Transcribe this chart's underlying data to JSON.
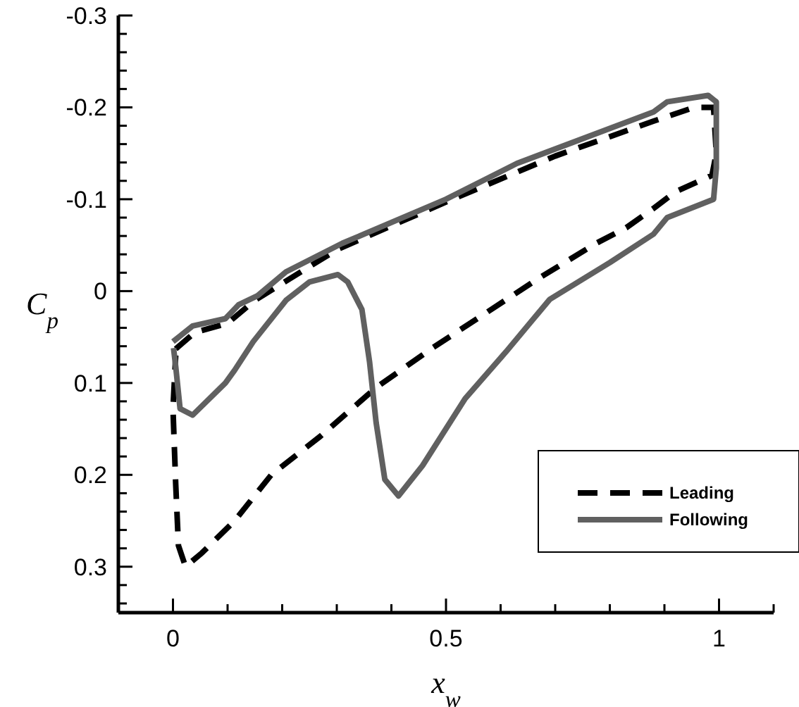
{
  "chart_data": {
    "type": "line",
    "xlabel": "x$_{w}$",
    "ylabel": "C$_{p}$",
    "xlim": [
      -0.1,
      1.1
    ],
    "ylim": [
      0.35,
      -0.3
    ],
    "xticks": [
      {
        "value": 0,
        "label": "0"
      },
      {
        "value": 0.1,
        "label": null
      },
      {
        "value": 0.2,
        "label": null
      },
      {
        "value": 0.3,
        "label": null
      },
      {
        "value": 0.4,
        "label": null
      },
      {
        "value": 0.5,
        "label": "0.5"
      },
      {
        "value": 0.6,
        "label": null
      },
      {
        "value": 0.7,
        "label": null
      },
      {
        "value": 0.8,
        "label": null
      },
      {
        "value": 0.9,
        "label": null
      },
      {
        "value": 1,
        "label": "1"
      },
      {
        "value": 1.1,
        "label": null
      }
    ],
    "yticks": [
      {
        "value": -0.3,
        "label": "-0.3"
      },
      {
        "value": -0.28,
        "label": null
      },
      {
        "value": -0.26,
        "label": null
      },
      {
        "value": -0.24,
        "label": null
      },
      {
        "value": -0.22,
        "label": null
      },
      {
        "value": -0.2,
        "label": "-0.2"
      },
      {
        "value": -0.18,
        "label": null
      },
      {
        "value": -0.16,
        "label": null
      },
      {
        "value": -0.14,
        "label": null
      },
      {
        "value": -0.12,
        "label": null
      },
      {
        "value": -0.1,
        "label": "-0.1"
      },
      {
        "value": -0.08,
        "label": null
      },
      {
        "value": -0.06,
        "label": null
      },
      {
        "value": -0.04,
        "label": null
      },
      {
        "value": -0.02,
        "label": null
      },
      {
        "value": 0,
        "label": "0"
      },
      {
        "value": 0.02,
        "label": null
      },
      {
        "value": 0.04,
        "label": null
      },
      {
        "value": 0.06,
        "label": null
      },
      {
        "value": 0.08,
        "label": null
      },
      {
        "value": 0.1,
        "label": "0.1"
      },
      {
        "value": 0.12,
        "label": null
      },
      {
        "value": 0.14,
        "label": null
      },
      {
        "value": 0.16,
        "label": null
      },
      {
        "value": 0.18,
        "label": null
      },
      {
        "value": 0.2,
        "label": "0.2"
      },
      {
        "value": 0.22,
        "label": null
      },
      {
        "value": 0.24,
        "label": null
      },
      {
        "value": 0.26,
        "label": null
      },
      {
        "value": 0.28,
        "label": null
      },
      {
        "value": 0.3,
        "label": "0.3"
      },
      {
        "value": 0.32,
        "label": null
      },
      {
        "value": 0.34,
        "label": null
      }
    ],
    "grid": false,
    "legend": "bottom right",
    "marker": "none",
    "series": [
      {
        "name": "Leading",
        "color": "#000000",
        "line_style": "dashed",
        "x": [
          0.005,
          0.04,
          0.1,
          0.15,
          0.3,
          0.5,
          0.7,
          0.88,
          0.955,
          0.99,
          0.995,
          0.987,
          0.92,
          0.88,
          0.83,
          0.775,
          0.67,
          0.57,
          0.475,
          0.372,
          0.27,
          0.18,
          0.113,
          0.053,
          0.023,
          0.01,
          0.005,
          0,
          0.005
        ],
        "values": [
          0.063,
          0.045,
          0.035,
          0.01,
          -0.045,
          -0.097,
          -0.147,
          -0.185,
          -0.2,
          -0.2,
          -0.15,
          -0.126,
          -0.108,
          -0.09,
          -0.069,
          -0.052,
          -0.014,
          0.025,
          0.062,
          0.105,
          0.158,
          0.2,
          0.25,
          0.285,
          0.3,
          0.277,
          0.21,
          0.128,
          0.07
        ]
      },
      {
        "name": "Following",
        "color": "#606060",
        "line_style": "solid",
        "x": [
          0,
          0.036,
          0.096,
          0.12,
          0.155,
          0.207,
          0.31,
          0.5,
          0.63,
          0.88,
          0.905,
          0.98,
          0.995,
          0.995,
          0.99,
          0.905,
          0.88,
          0.8,
          0.69,
          0.61,
          0.535,
          0.457,
          0.413,
          0.388,
          0.372,
          0.36,
          0.346,
          0.32,
          0.302,
          0.25,
          0.207,
          0.147,
          0.113,
          0.096,
          0.036,
          0.013,
          0.005,
          0.001
        ],
        "values": [
          0.055,
          0.038,
          0.03,
          0.015,
          0.005,
          -0.021,
          -0.052,
          -0.1,
          -0.139,
          -0.195,
          -0.206,
          -0.213,
          -0.206,
          -0.134,
          -0.1,
          -0.08,
          -0.062,
          -0.031,
          0.009,
          0.066,
          0.117,
          0.19,
          0.223,
          0.205,
          0.143,
          0.077,
          0.02,
          -0.01,
          -0.018,
          -0.01,
          0.01,
          0.055,
          0.086,
          0.1,
          0.135,
          0.128,
          0.082,
          0.062
        ]
      }
    ]
  }
}
